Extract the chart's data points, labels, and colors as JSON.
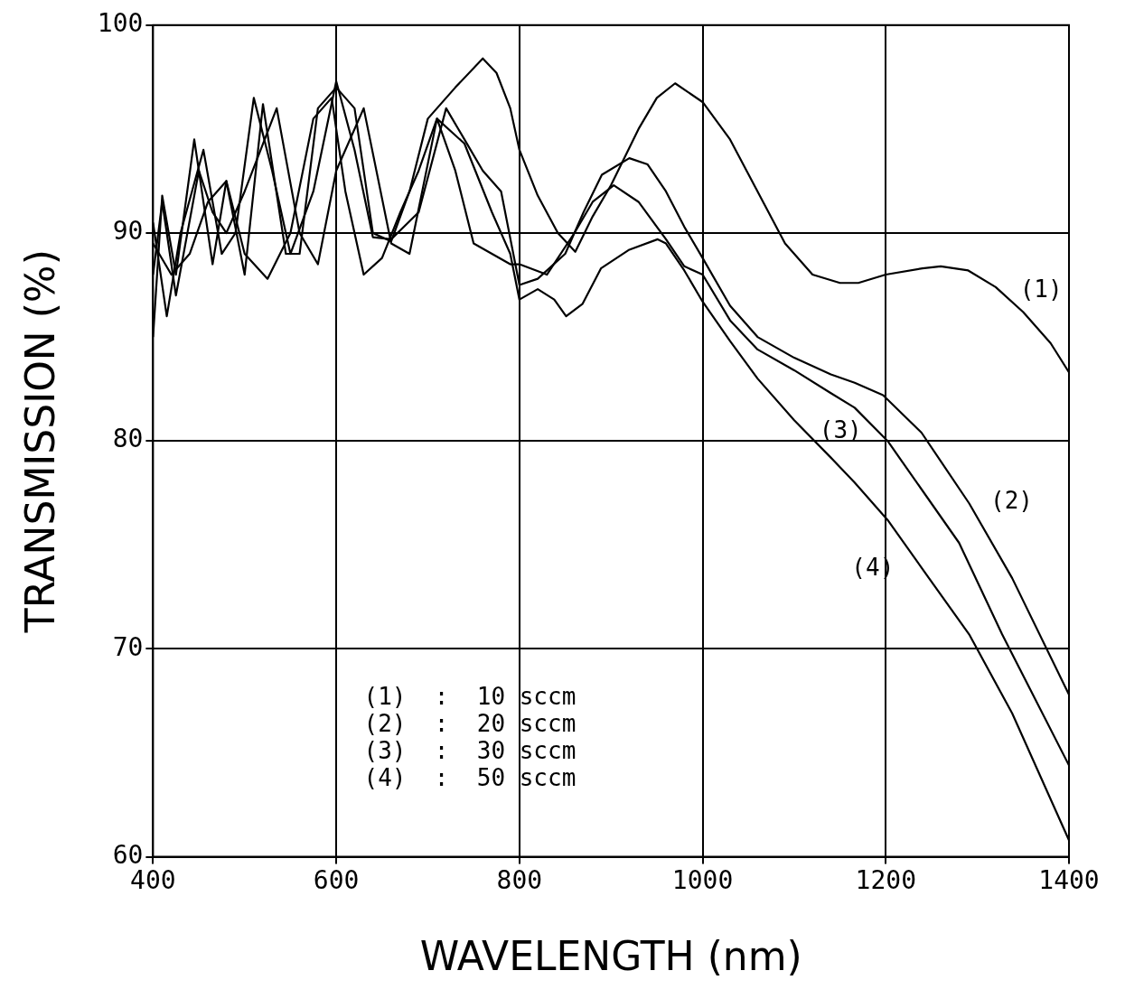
{
  "chart_data": {
    "type": "line",
    "xlabel": "WAVELENGTH (nm)",
    "ylabel": "TRANSMISSION (%)",
    "xlim": [
      400,
      1400
    ],
    "xticks": [
      400,
      600,
      800,
      1000,
      1200,
      1400
    ],
    "ylim": [
      60,
      100
    ],
    "yticks": [
      60,
      70,
      80,
      90,
      100
    ],
    "grid": true,
    "legend": false,
    "marker": "none",
    "line_style": "solid",
    "series": [
      {
        "name": "(1)",
        "color": "#000000",
        "x": [
          400,
          410,
          425,
          445,
          465,
          480,
          500,
          520,
          545,
          560,
          580,
          600,
          620,
          640,
          660,
          680,
          700,
          730,
          760,
          775,
          790,
          800,
          820,
          842,
          861,
          880,
          900,
          930,
          950,
          970,
          1000,
          1030,
          1060,
          1090,
          1120,
          1150,
          1170,
          1200,
          1240,
          1260,
          1290,
          1320,
          1350,
          1380,
          1400
        ],
        "values": [
          85,
          91.8,
          88,
          94.5,
          88.5,
          92.5,
          88,
          96.2,
          89,
          89,
          96,
          97,
          96,
          90,
          89.6,
          92,
          95.5,
          97,
          98.4,
          97.7,
          96,
          94,
          91.8,
          90,
          89.1,
          90.8,
          92.3,
          95,
          96.5,
          97.2,
          96.3,
          94.5,
          92,
          89.5,
          88,
          87.6,
          87.6,
          88,
          88.3,
          88.4,
          88.2,
          87.4,
          86.2,
          84.7,
          83.3
        ]
      },
      {
        "name": "(2)",
        "color": "#000000",
        "x": [
          400,
          415,
          430,
          455,
          475,
          490,
          510,
          530,
          550,
          575,
          600,
          620,
          640,
          660,
          690,
          720,
          740,
          760,
          780,
          800,
          820,
          850,
          870,
          890,
          920,
          940,
          960,
          980,
          1000,
          1030,
          1060,
          1100,
          1140,
          1166,
          1197,
          1239,
          1291,
          1338,
          1400
        ],
        "values": [
          90.5,
          86,
          90,
          94,
          89,
          90,
          96.5,
          93,
          89,
          92,
          97.3,
          94,
          89.8,
          89.7,
          91,
          96,
          94.5,
          93,
          92,
          87.5,
          87.8,
          89,
          91,
          92.8,
          93.6,
          93.3,
          92,
          90.3,
          88.8,
          86.5,
          85,
          84,
          83.2,
          82.8,
          82.2,
          80.4,
          77,
          73.4,
          67.8
        ]
      },
      {
        "name": "(3)",
        "color": "#000000",
        "x": [
          400,
          410,
          425,
          450,
          465,
          480,
          500,
          535,
          560,
          580,
          600,
          630,
          660,
          680,
          710,
          730,
          750,
          770,
          790,
          800,
          830,
          860,
          880,
          903,
          930,
          960,
          980,
          1000,
          1030,
          1060,
          1100,
          1140,
          1166,
          1202,
          1280,
          1327,
          1400
        ],
        "values": [
          88,
          91.5,
          87,
          93,
          91,
          90,
          92,
          96,
          90,
          88.5,
          93,
          96,
          89.5,
          89,
          95.5,
          93,
          89.5,
          89,
          88.5,
          88.5,
          88,
          90,
          91.5,
          92.3,
          91.5,
          89.7,
          88.4,
          88,
          85.8,
          84.4,
          83.4,
          82.3,
          81.6,
          80,
          75.1,
          70.7,
          64.4
        ]
      },
      {
        "name": "(4)",
        "color": "#000000",
        "x": [
          400,
          420,
          440,
          460,
          480,
          500,
          525,
          550,
          575,
          595,
          610,
          630,
          650,
          670,
          690,
          710,
          740,
          770,
          790,
          800,
          820,
          838,
          851,
          869,
          889,
          920,
          951,
          960,
          980,
          1000,
          1030,
          1060,
          1100,
          1140,
          1166,
          1202,
          1244,
          1291,
          1338,
          1400
        ],
        "values": [
          89.5,
          88,
          89,
          91.5,
          92.5,
          89,
          87.8,
          90,
          95.5,
          96.5,
          92,
          88,
          88.8,
          91,
          93,
          95.5,
          94.3,
          91,
          89,
          86.8,
          87.3,
          86.8,
          86,
          86.6,
          88.3,
          89.2,
          89.7,
          89.5,
          88.2,
          86.7,
          84.8,
          83,
          81,
          79.2,
          78,
          76.2,
          73.6,
          70.7,
          66.9,
          60.8
        ]
      }
    ],
    "annotations": [
      "(1)  :  10 sccm",
      "(2)  :  20 sccm",
      "(3)  :  30 sccm",
      "(4)  :  50 sccm"
    ]
  }
}
